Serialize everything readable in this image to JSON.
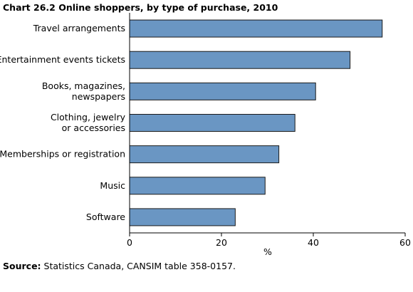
{
  "chart_data": {
    "type": "bar",
    "orientation": "horizontal",
    "title": "Chart 26.2  Online shoppers, by type of purchase, 2010",
    "categories": [
      [
        "Travel arrangements"
      ],
      [
        "Entertainment events tickets"
      ],
      [
        "Books, magazines,",
        "newspapers"
      ],
      [
        "Clothing, jewelry",
        "or accessories"
      ],
      [
        "Memberships or registration"
      ],
      [
        "Music"
      ],
      [
        "Software"
      ]
    ],
    "values": [
      55,
      48,
      40.5,
      36,
      32.5,
      29.5,
      23
    ],
    "xlabel": "%",
    "ylabel": "",
    "xlim": [
      0,
      60
    ],
    "xticks": [
      "0",
      "20",
      "40",
      "60"
    ],
    "bar_color": "#6a96c3",
    "grid": false
  },
  "source": {
    "label": "Source:",
    "text": " Statistics Canada, CANSIM table 358-0157."
  }
}
